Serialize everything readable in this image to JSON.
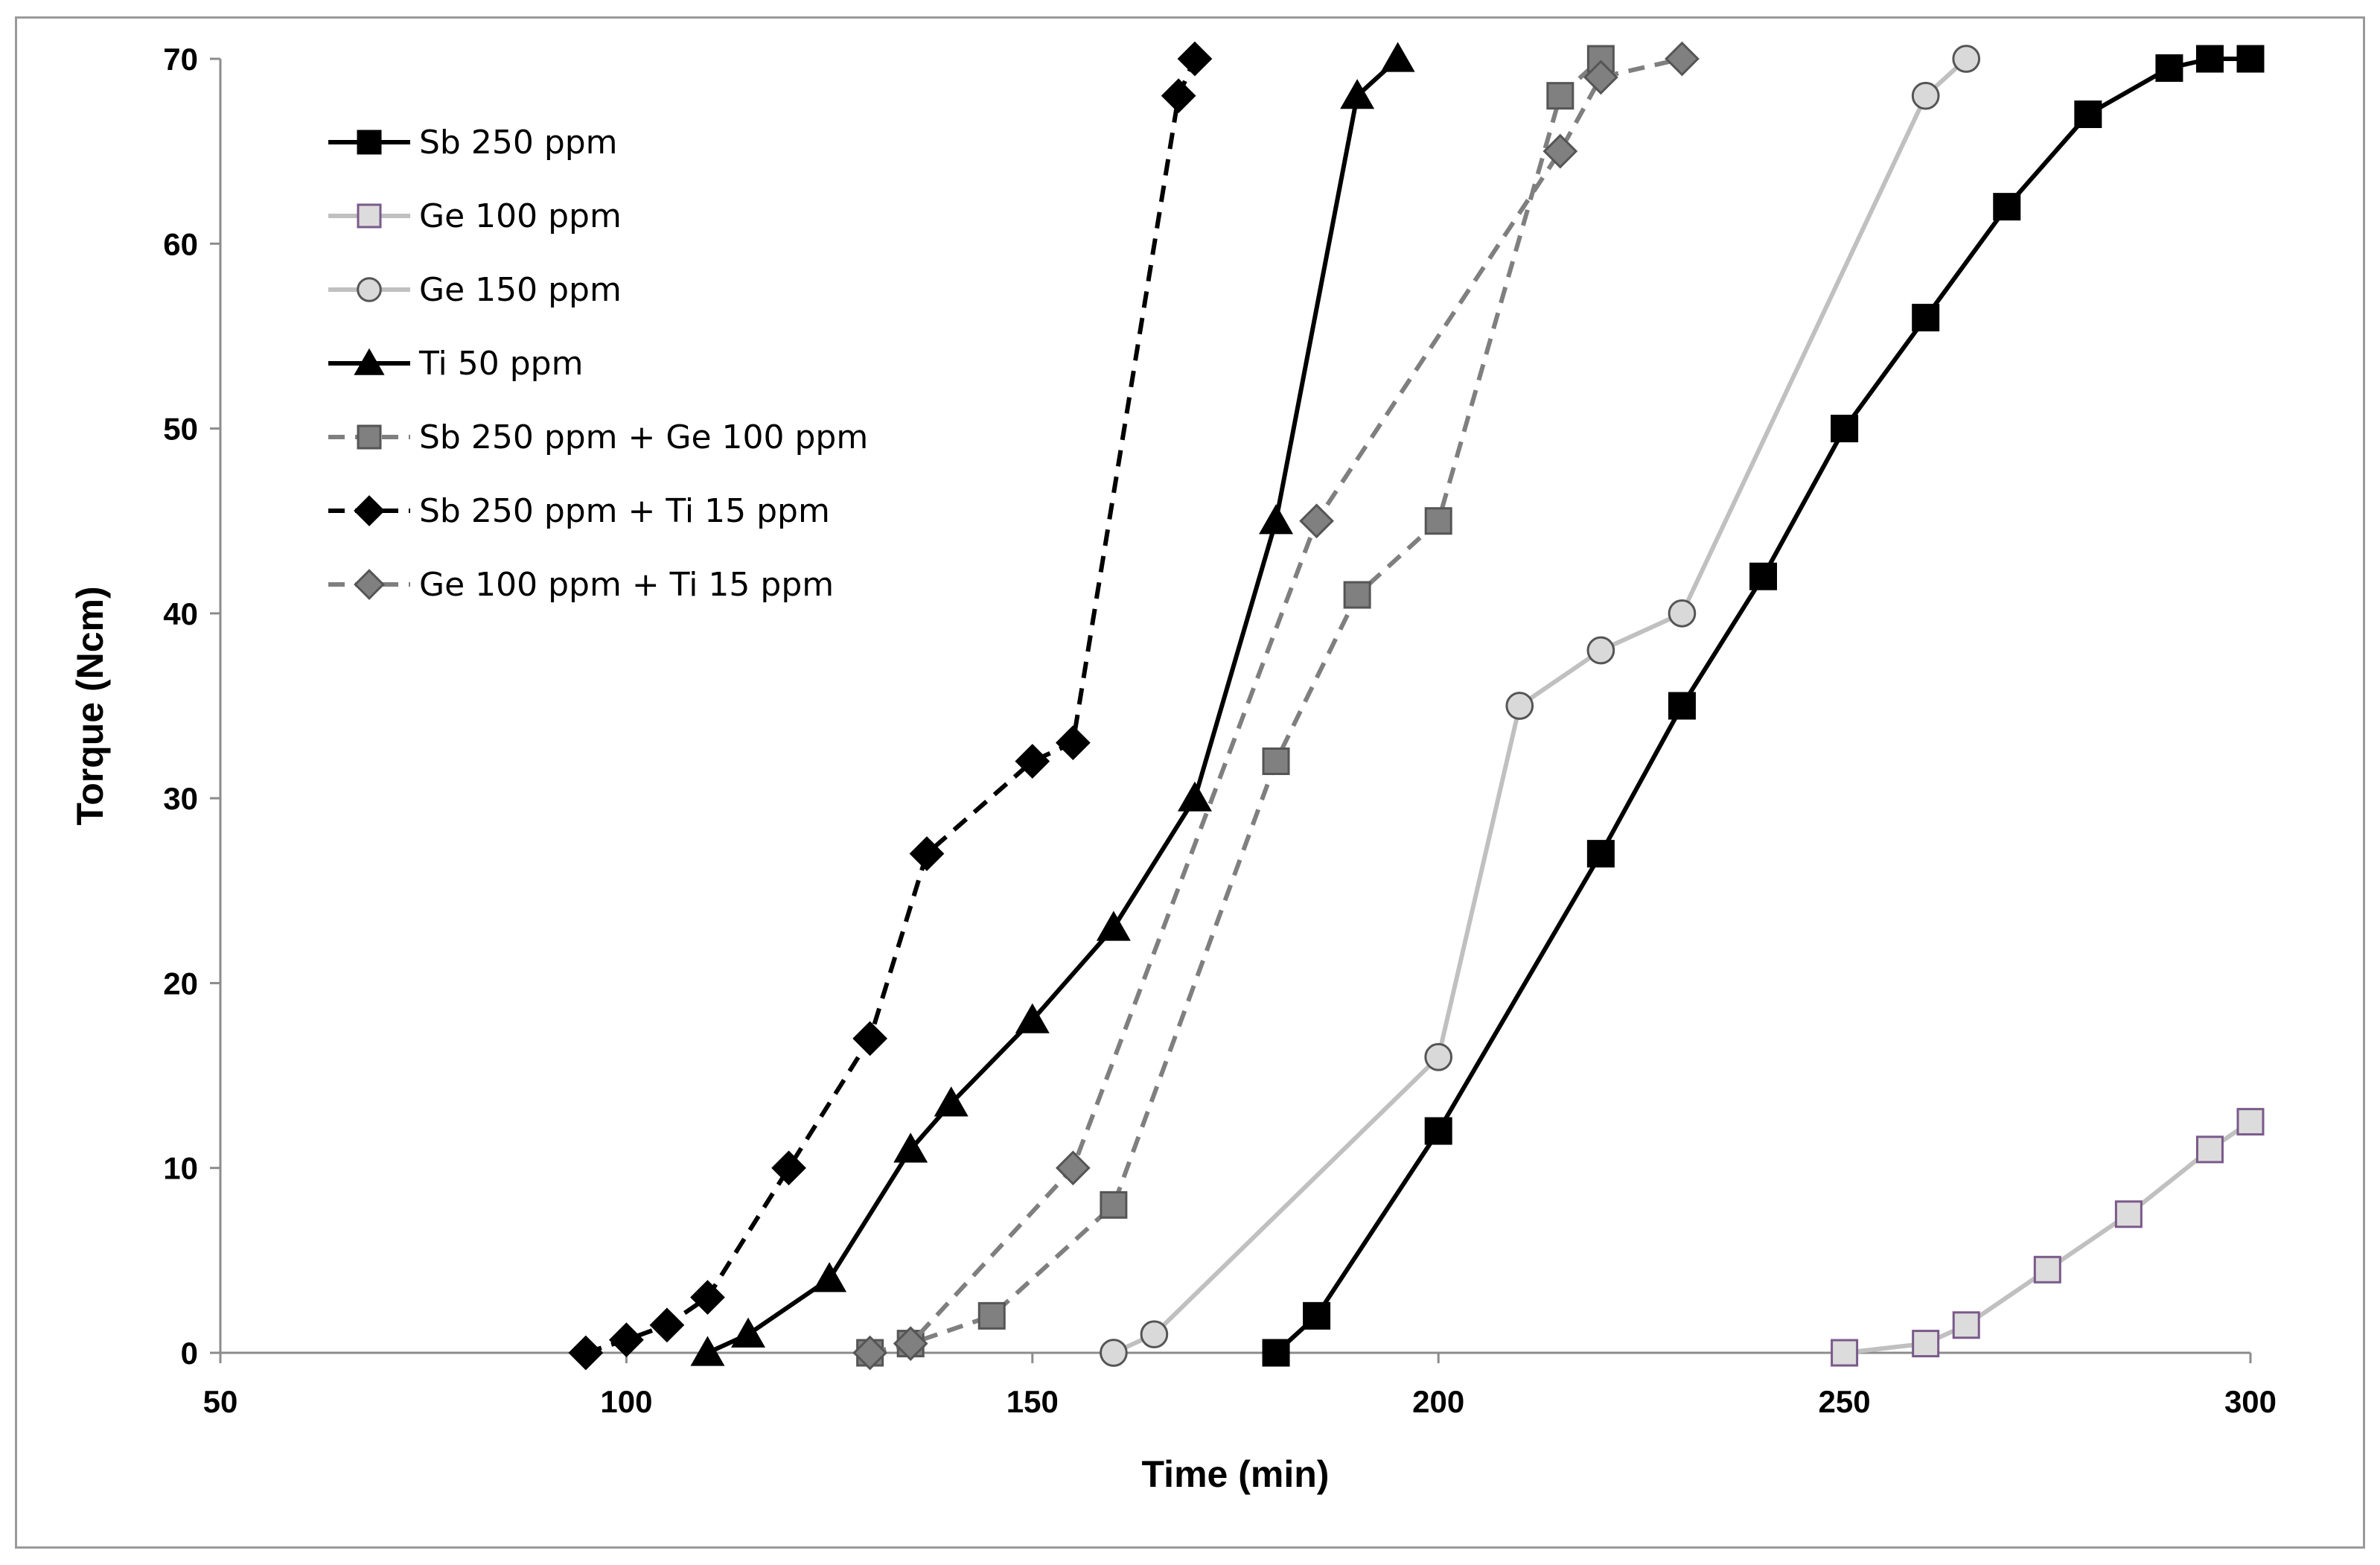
{
  "chart_data": {
    "type": "line",
    "title": "",
    "xlabel": "Time (min)",
    "ylabel": "Torque (Ncm)",
    "xlim": [
      50,
      300
    ],
    "ylim": [
      0,
      70
    ],
    "xticks": [
      50,
      100,
      150,
      200,
      250,
      300
    ],
    "yticks": [
      0,
      10,
      20,
      30,
      40,
      50,
      60,
      70
    ],
    "xtick_labels": [
      "50",
      "100",
      "150",
      "200",
      "250",
      "300"
    ],
    "ytick_labels": [
      "0",
      "10",
      "20",
      "30",
      "40",
      "50",
      "60",
      "70"
    ],
    "grid": false,
    "legend_position": "top-left",
    "series": [
      {
        "name": "Sb 250 ppm",
        "color": "#000000",
        "fill": "#000000",
        "marker": "square",
        "dashed": false,
        "points": [
          [
            180,
            0
          ],
          [
            185,
            2
          ],
          [
            200,
            12
          ],
          [
            220,
            27
          ],
          [
            230,
            35
          ],
          [
            240,
            42
          ],
          [
            250,
            50
          ],
          [
            260,
            56
          ],
          [
            270,
            62
          ],
          [
            280,
            67
          ],
          [
            290,
            69.5
          ],
          [
            295,
            70
          ],
          [
            300,
            70
          ]
        ]
      },
      {
        "name": "Ge 100 ppm",
        "color": "#c0c0c0",
        "fill": "#dcdcdc",
        "stroke": "#7a5a8a",
        "marker": "square",
        "dashed": false,
        "points": [
          [
            250,
            0
          ],
          [
            260,
            0.5
          ],
          [
            265,
            1.5
          ],
          [
            275,
            4.5
          ],
          [
            285,
            7.5
          ],
          [
            295,
            11
          ],
          [
            300,
            12.5
          ]
        ]
      },
      {
        "name": "Ge 150 ppm",
        "color": "#c0c0c0",
        "fill": "#d9d9d9",
        "marker": "circle",
        "dashed": false,
        "points": [
          [
            160,
            0
          ],
          [
            165,
            1
          ],
          [
            200,
            16
          ],
          [
            210,
            35
          ],
          [
            220,
            38
          ],
          [
            230,
            40
          ],
          [
            260,
            68
          ],
          [
            265,
            70
          ]
        ]
      },
      {
        "name": "Ti 50 ppm",
        "color": "#000000",
        "fill": "#000000",
        "marker": "triangle",
        "dashed": false,
        "points": [
          [
            110,
            0
          ],
          [
            115,
            1
          ],
          [
            125,
            4
          ],
          [
            135,
            11
          ],
          [
            140,
            13.5
          ],
          [
            150,
            18
          ],
          [
            160,
            23
          ],
          [
            170,
            30
          ],
          [
            180,
            45
          ],
          [
            190,
            68
          ],
          [
            195,
            70
          ]
        ]
      },
      {
        "name": "Sb 250 ppm + Ge 100 ppm",
        "color": "#7f7f7f",
        "fill": "#808080",
        "marker": "square",
        "dashed": true,
        "points": [
          [
            130,
            0
          ],
          [
            135,
            0.5
          ],
          [
            145,
            2
          ],
          [
            160,
            8
          ],
          [
            180,
            32
          ],
          [
            190,
            41
          ],
          [
            200,
            45
          ],
          [
            215,
            68
          ],
          [
            220,
            70
          ]
        ]
      },
      {
        "name": "Sb 250 ppm + Ti 15 ppm",
        "color": "#000000",
        "fill": "#000000",
        "marker": "diamond",
        "dashed": true,
        "points": [
          [
            95,
            0
          ],
          [
            100,
            0.7
          ],
          [
            105,
            1.5
          ],
          [
            110,
            3
          ],
          [
            120,
            10
          ],
          [
            130,
            17
          ],
          [
            137,
            27
          ],
          [
            150,
            32
          ],
          [
            155,
            33
          ],
          [
            168,
            68
          ],
          [
            170,
            70
          ]
        ]
      },
      {
        "name": "Ge 100 ppm + Ti 15 ppm",
        "color": "#7f7f7f",
        "fill": "#808080",
        "marker": "diamond",
        "dashed": true,
        "points": [
          [
            130,
            0
          ],
          [
            135,
            0.5
          ],
          [
            155,
            10
          ],
          [
            185,
            45
          ],
          [
            215,
            65
          ],
          [
            220,
            69
          ],
          [
            230,
            70
          ]
        ]
      }
    ]
  }
}
